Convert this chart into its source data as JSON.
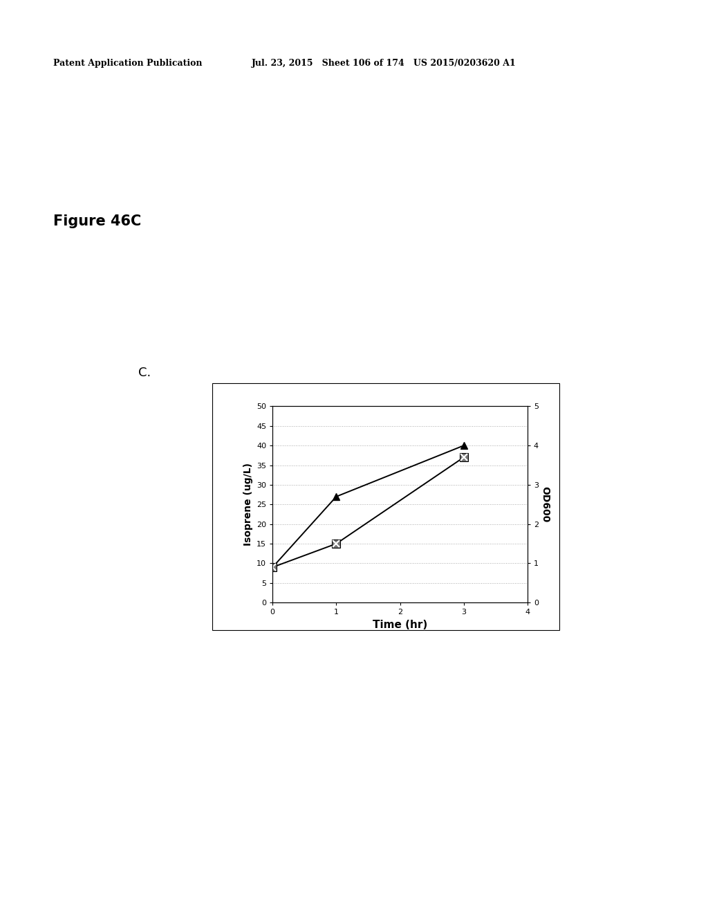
{
  "header_left": "Patent Application Publication",
  "header_mid": "Jul. 23, 2015   Sheet 106 of 174   US 2015/0203620 A1",
  "figure_label": "Figure 46C",
  "panel_label": "C.",
  "xlabel": "Time (hr)",
  "ylabel_left": "Isoprene (ug/L)",
  "ylabel_right": "OD600",
  "series1_x": [
    0,
    1,
    3
  ],
  "series1_y": [
    9,
    27,
    40
  ],
  "series2_x": [
    0,
    1,
    3
  ],
  "series2_y": [
    9,
    15,
    37
  ],
  "xlim": [
    0,
    4
  ],
  "ylim_left": [
    0,
    50
  ],
  "ylim_right": [
    0,
    5
  ],
  "yticks_left": [
    0,
    5,
    10,
    15,
    20,
    25,
    30,
    35,
    40,
    45,
    50
  ],
  "yticks_right": [
    0,
    1,
    2,
    3,
    4,
    5
  ],
  "xticks": [
    0,
    1,
    2,
    3,
    4
  ],
  "bg_color": "#ffffff",
  "line_color": "#000000",
  "markersize": 7,
  "linewidth": 1.4,
  "grid_color": "#aaaaaa",
  "header_fontsize": 9,
  "figure_label_fontsize": 15,
  "panel_label_fontsize": 13,
  "axis_label_fontsize": 10,
  "tick_fontsize": 8,
  "xlabel_fontsize": 11
}
